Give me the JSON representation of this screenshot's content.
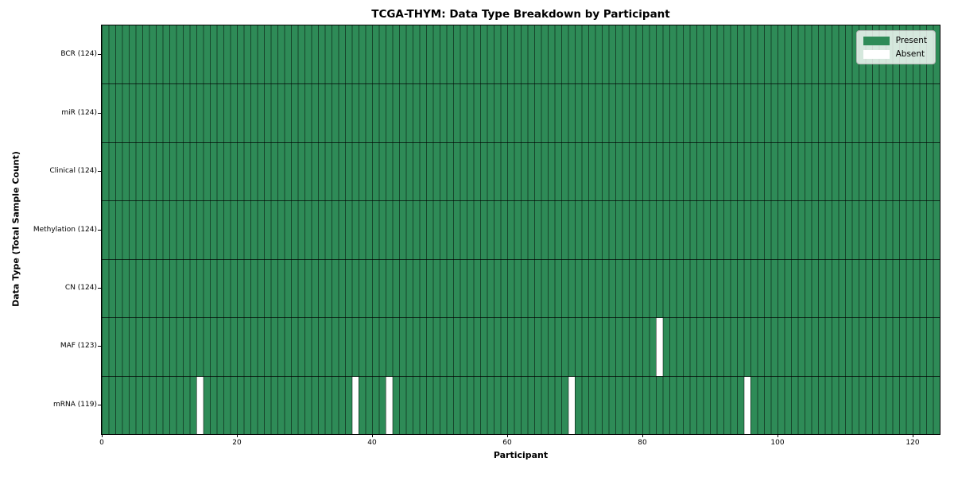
{
  "title": "TCGA-THYM: Data Type Breakdown by Participant",
  "chart_data": {
    "type": "heatmap",
    "title": "TCGA-THYM: Data Type Breakdown by Participant",
    "xlabel": "Participant",
    "ylabel": "Data Type (Total Sample Count)",
    "x_ticks": [
      0,
      20,
      40,
      60,
      80,
      100,
      120
    ],
    "x_range": [
      0,
      124
    ],
    "n_participants": 124,
    "grid": "cell-borders",
    "categories": [
      "BCR (124)",
      "miR (124)",
      "Clinical (124)",
      "Methylation (124)",
      "CN (124)",
      "MAF (123)",
      "mRNA (119)"
    ],
    "rows": [
      {
        "label": "BCR (124)",
        "data_type": "BCR",
        "total_sample_count": 124,
        "present_count": 124,
        "absent_participant_indices": []
      },
      {
        "label": "miR (124)",
        "data_type": "miR",
        "total_sample_count": 124,
        "present_count": 124,
        "absent_participant_indices": []
      },
      {
        "label": "Clinical (124)",
        "data_type": "Clinical",
        "total_sample_count": 124,
        "present_count": 124,
        "absent_participant_indices": []
      },
      {
        "label": "Methylation (124)",
        "data_type": "Methylation",
        "total_sample_count": 124,
        "present_count": 124,
        "absent_participant_indices": []
      },
      {
        "label": "CN (124)",
        "data_type": "CN",
        "total_sample_count": 124,
        "present_count": 124,
        "absent_participant_indices": []
      },
      {
        "label": "MAF (123)",
        "data_type": "MAF",
        "total_sample_count": 123,
        "present_count": 123,
        "absent_participant_indices": [
          82
        ]
      },
      {
        "label": "mRNA (119)",
        "data_type": "mRNA",
        "total_sample_count": 119,
        "present_count": 119,
        "absent_participant_indices": [
          14,
          37,
          42,
          69,
          95
        ]
      }
    ],
    "legend": {
      "position": "upper right",
      "entries": [
        {
          "label": "Present",
          "color": "#2e8b57"
        },
        {
          "label": "Absent",
          "color": "#ffffff"
        }
      ]
    },
    "colors": {
      "present": "#2e8b57",
      "absent": "#ffffff",
      "cell_edge": "rgba(0,0,0,0.5)",
      "row_separator": "rgba(0,0,0,0.7)",
      "frame": "#000000"
    }
  }
}
